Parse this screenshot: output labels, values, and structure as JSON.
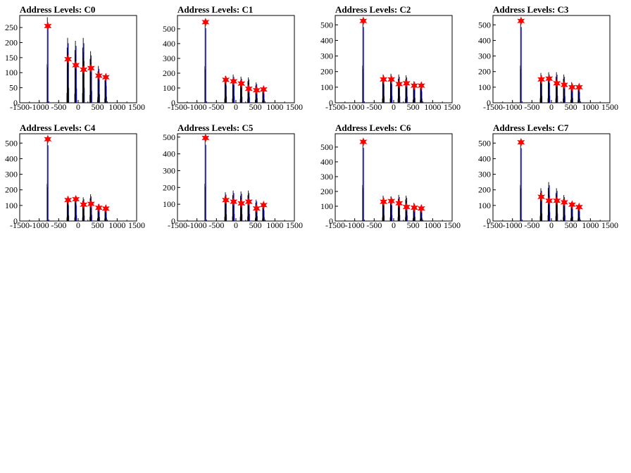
{
  "chart_data": [
    {
      "type": "line",
      "title": "Address Levels: C0",
      "xlim": [
        -1500,
        1500
      ],
      "ylim": [
        0,
        290
      ],
      "xticks": [
        -1500,
        -1000,
        -500,
        0,
        500,
        1000,
        1500
      ],
      "xtick_labels": [
        "-1500",
        "-1000",
        "-500",
        "0",
        "500",
        "1000",
        "1500"
      ],
      "yticks": [
        0,
        50,
        100,
        150,
        200,
        250
      ],
      "ytick_labels": [
        "0",
        "50",
        "100",
        "150",
        "200",
        "250"
      ],
      "peaks": {
        "x": [
          -780,
          -260,
          -60,
          140,
          330,
          530,
          710
        ],
        "y": [
          255,
          145,
          125,
          110,
          115,
          90,
          85
        ]
      },
      "histogram_max": {
        "x": [
          -780,
          -260,
          -60,
          140,
          330,
          530,
          710
        ],
        "y": [
          290,
          220,
          210,
          220,
          175,
          125,
          90
        ]
      }
    },
    {
      "type": "line",
      "title": "Address Levels: C1",
      "xlim": [
        -1500,
        1500
      ],
      "ylim": [
        0,
        590
      ],
      "xticks": [
        -1500,
        -1000,
        -500,
        0,
        500,
        1000,
        1500
      ],
      "xtick_labels": [
        "-1500",
        "-1000",
        "-500",
        "0",
        "500",
        "1000",
        "1500"
      ],
      "yticks": [
        0,
        100,
        200,
        300,
        400,
        500
      ],
      "ytick_labels": [
        "0",
        "100",
        "200",
        "300",
        "400",
        "500"
      ],
      "peaks": {
        "x": [
          -780,
          -260,
          -60,
          140,
          330,
          530,
          710
        ],
        "y": [
          545,
          155,
          145,
          130,
          95,
          85,
          90
        ]
      },
      "histogram_max": {
        "x": [
          -780,
          -260,
          -60,
          140,
          330,
          530,
          710
        ],
        "y": [
          560,
          185,
          195,
          180,
          175,
          140,
          100
        ]
      }
    },
    {
      "type": "line",
      "title": "Address Levels: C2",
      "xlim": [
        -1500,
        1500
      ],
      "ylim": [
        0,
        560
      ],
      "xticks": [
        -1500,
        -1000,
        -500,
        0,
        500,
        1000,
        1500
      ],
      "xtick_labels": [
        "-1500",
        "-1000",
        "-500",
        "0",
        "500",
        "1000",
        "1500"
      ],
      "yticks": [
        0,
        100,
        200,
        300,
        400,
        500
      ],
      "ytick_labels": [
        "0",
        "100",
        "200",
        "300",
        "400",
        "500"
      ],
      "peaks": {
        "x": [
          -780,
          -260,
          -60,
          140,
          330,
          530,
          710
        ],
        "y": [
          525,
          150,
          150,
          120,
          125,
          110,
          110
        ]
      },
      "histogram_max": {
        "x": [
          -780,
          -260,
          -60,
          140,
          330,
          530,
          710
        ],
        "y": [
          540,
          185,
          190,
          185,
          180,
          140,
          115
        ]
      }
    },
    {
      "type": "line",
      "title": "Address Levels: C3",
      "xlim": [
        -1500,
        1500
      ],
      "ylim": [
        0,
        560
      ],
      "xticks": [
        -1500,
        -1000,
        -500,
        0,
        500,
        1000,
        1500
      ],
      "xtick_labels": [
        "-1500",
        "-1000",
        "-500",
        "0",
        "500",
        "1000",
        "1500"
      ],
      "yticks": [
        0,
        100,
        200,
        300,
        400,
        500
      ],
      "ytick_labels": [
        "0",
        "100",
        "200",
        "300",
        "400",
        "500"
      ],
      "peaks": {
        "x": [
          -780,
          -260,
          -60,
          140,
          330,
          530,
          710
        ],
        "y": [
          525,
          150,
          155,
          125,
          115,
          100,
          100
        ]
      },
      "histogram_max": {
        "x": [
          -780,
          -260,
          -60,
          140,
          330,
          530,
          710
        ],
        "y": [
          540,
          195,
          200,
          200,
          185,
          135,
          110
        ]
      }
    },
    {
      "type": "line",
      "title": "Address Levels: C4",
      "xlim": [
        -1500,
        1500
      ],
      "ylim": [
        0,
        560
      ],
      "xticks": [
        -1500,
        -1000,
        -500,
        0,
        500,
        1000,
        1500
      ],
      "xtick_labels": [
        "-1500",
        "-1000",
        "-500",
        "0",
        "500",
        "1000",
        "1500"
      ],
      "yticks": [
        0,
        100,
        200,
        300,
        400,
        500
      ],
      "ytick_labels": [
        "0",
        "100",
        "200",
        "300",
        "400",
        "500"
      ],
      "peaks": {
        "x": [
          -780,
          -260,
          -60,
          140,
          330,
          530,
          710
        ],
        "y": [
          525,
          135,
          140,
          105,
          110,
          85,
          80
        ]
      },
      "histogram_max": {
        "x": [
          -780,
          -260,
          -60,
          140,
          330,
          530,
          710
        ],
        "y": [
          540,
          160,
          160,
          155,
          175,
          110,
          95
        ]
      }
    },
    {
      "type": "line",
      "title": "Address Levels: C5",
      "xlim": [
        -1500,
        1500
      ],
      "ylim": [
        0,
        520
      ],
      "xticks": [
        -1500,
        -1000,
        -500,
        0,
        500,
        1000,
        1500
      ],
      "xtick_labels": [
        "-1500",
        "-1000",
        "-500",
        "0",
        "500",
        "1000",
        "1500"
      ],
      "yticks": [
        0,
        100,
        200,
        300,
        400,
        500
      ],
      "ytick_labels": [
        "0",
        "100",
        "200",
        "300",
        "400",
        "500"
      ],
      "peaks": {
        "x": [
          -780,
          -260,
          -60,
          140,
          330,
          530,
          710
        ],
        "y": [
          495,
          125,
          115,
          105,
          115,
          75,
          95
        ]
      },
      "histogram_max": {
        "x": [
          -780,
          -260,
          -60,
          140,
          330,
          530,
          710
        ],
        "y": [
          505,
          175,
          185,
          180,
          185,
          130,
          100
        ]
      }
    },
    {
      "type": "line",
      "title": "Address Levels: C6",
      "xlim": [
        -1500,
        1500
      ],
      "ylim": [
        0,
        590
      ],
      "xticks": [
        -1500,
        -1000,
        -500,
        0,
        500,
        1000,
        1500
      ],
      "xtick_labels": [
        "-1500",
        "-1000",
        "-500",
        "0",
        "500",
        "1000",
        "1500"
      ],
      "yticks": [
        0,
        100,
        200,
        300,
        400,
        500
      ],
      "ytick_labels": [
        "0",
        "100",
        "200",
        "300",
        "400",
        "500"
      ],
      "peaks": {
        "x": [
          -780,
          -260,
          -60,
          140,
          330,
          530,
          710
        ],
        "y": [
          535,
          130,
          135,
          120,
          95,
          90,
          85
        ]
      },
      "histogram_max": {
        "x": [
          -780,
          -260,
          -60,
          140,
          330,
          530,
          710
        ],
        "y": [
          550,
          175,
          170,
          180,
          175,
          125,
          95
        ]
      }
    },
    {
      "type": "line",
      "title": "Address Levels: C7",
      "xlim": [
        -1500,
        1500
      ],
      "ylim": [
        0,
        560
      ],
      "xticks": [
        -1500,
        -1000,
        -500,
        0,
        500,
        1000,
        1500
      ],
      "xtick_labels": [
        "-1500",
        "-1000",
        "-500",
        "0",
        "500",
        "1000",
        "1500"
      ],
      "yticks": [
        0,
        100,
        200,
        300,
        400,
        500
      ],
      "ytick_labels": [
        "0",
        "100",
        "200",
        "300",
        "400",
        "500"
      ],
      "peaks": {
        "x": [
          -780,
          -260,
          -60,
          140,
          330,
          530,
          710
        ],
        "y": [
          505,
          155,
          130,
          130,
          120,
          105,
          90
        ]
      },
      "histogram_max": {
        "x": [
          -780,
          -260,
          -60,
          140,
          330,
          530,
          710
        ],
        "y": [
          520,
          215,
          255,
          215,
          170,
          125,
          100
        ]
      }
    }
  ],
  "colors": {
    "histogram": "#0000ff",
    "histogram_dark": "#000000",
    "marker": "#ff0000",
    "frame": "#000000"
  }
}
